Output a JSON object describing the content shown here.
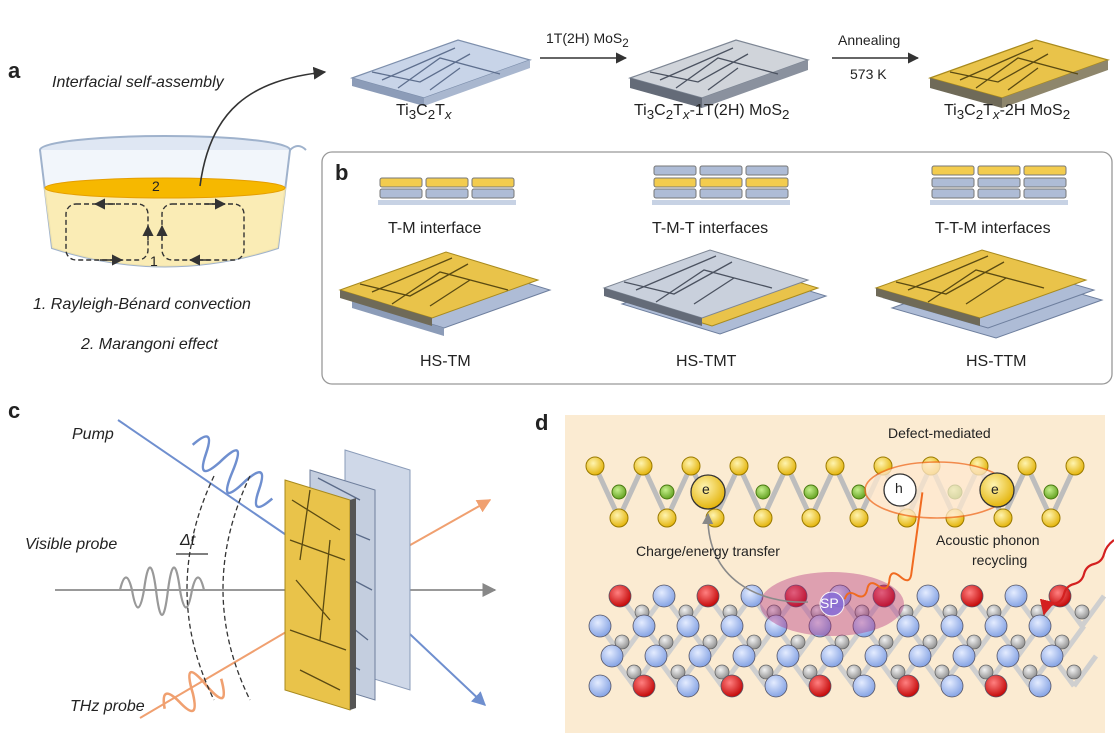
{
  "panels": {
    "a": "a",
    "b": "b",
    "c": "c",
    "d": "d"
  },
  "panel_a": {
    "title": "Interfacial self-assembly",
    "beaker_labels": {
      "one": "1",
      "two": "2"
    },
    "legend": [
      "1. Rayleigh-Bénard convection",
      "2. Marangoni effect"
    ],
    "step1": {
      "arrow_label": "1T(2H) MoS",
      "sub": "2"
    },
    "step2": {
      "arrow_label_top": "Annealing",
      "arrow_label_bottom": "573 K"
    },
    "products": [
      {
        "main": "Ti",
        "s1": "3",
        "m2": "C",
        "s2": "2",
        "m3": "T",
        "s3": "x",
        "rest": ""
      },
      {
        "main": "Ti",
        "s1": "3",
        "m2": "C",
        "s2": "2",
        "m3": "T",
        "s3": "x",
        "rest": "-1T(2H) MoS",
        "s4": "2"
      },
      {
        "main": "Ti",
        "s1": "3",
        "m2": "C",
        "s2": "2",
        "m3": "T",
        "s3": "x",
        "rest": "-2H MoS",
        "s4": "2"
      }
    ]
  },
  "panel_b": {
    "interfaces": [
      "T-M interface",
      "T-M-T interfaces",
      "T-T-M interfaces"
    ],
    "structures": [
      "HS-TM",
      "HS-TMT",
      "HS-TTM"
    ]
  },
  "panel_c": {
    "pump": "Pump",
    "visible": "Visible probe",
    "thz": "THz probe",
    "delay": "Δt"
  },
  "panel_d": {
    "defect": "Defect-mediated",
    "charge": "Charge/energy transfer",
    "acoustic_1": "Acoustic phonon",
    "acoustic_2": "recycling",
    "e": "e",
    "h": "h",
    "sp": "SP"
  },
  "colors": {
    "mxene": "#aebcd6",
    "mos2": "#e8c13d",
    "pump": "#6f8fcf",
    "thz": "#f0a070",
    "background_d": "#fbebd2"
  }
}
